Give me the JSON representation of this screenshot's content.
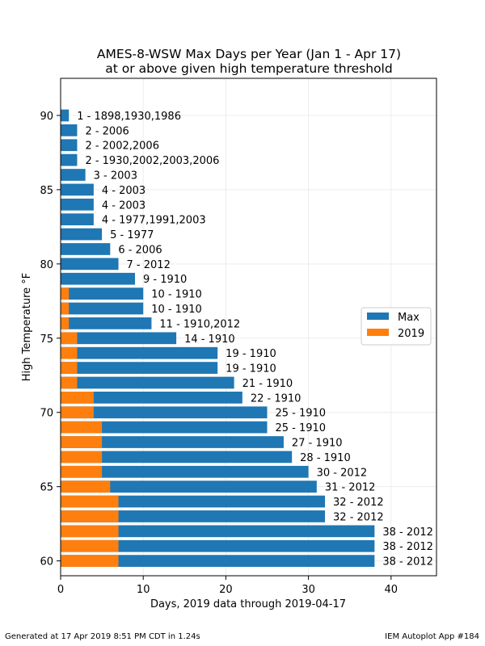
{
  "chart_data": {
    "type": "bar",
    "orientation": "horizontal",
    "title": "AMES-8-WSW Max Days per Year (Jan 1 - Apr 17)",
    "subtitle": "at or above given high temperature threshold",
    "xlabel": "Days, 2019 data through 2019-04-17",
    "ylabel": "High Temperature °F",
    "xlim": [
      0,
      45.5
    ],
    "ylim": [
      59,
      92.5
    ],
    "x_ticks": [
      0,
      10,
      20,
      30,
      40
    ],
    "y_ticks": [
      60,
      65,
      70,
      75,
      80,
      85,
      90
    ],
    "grid": true,
    "legend_position": "center-right",
    "thresholds": [
      90,
      89,
      88,
      87,
      86,
      85,
      84,
      83,
      82,
      81,
      80,
      79,
      78,
      77,
      76,
      75,
      74,
      73,
      72,
      71,
      70,
      69,
      68,
      67,
      66,
      65,
      64,
      63,
      62,
      61,
      60
    ],
    "series": [
      {
        "name": "Max",
        "color": "#1f77b4",
        "values": [
          1,
          2,
          2,
          2,
          3,
          4,
          4,
          4,
          5,
          6,
          7,
          9,
          10,
          10,
          11,
          14,
          19,
          19,
          21,
          22,
          25,
          25,
          27,
          28,
          30,
          31,
          32,
          32,
          38,
          38,
          38
        ]
      },
      {
        "name": "2019",
        "color": "#ff7f0e",
        "values": [
          0,
          0,
          0,
          0,
          0,
          0,
          0,
          0,
          0,
          0,
          0,
          0,
          1,
          1,
          1,
          2,
          2,
          2,
          2,
          4,
          4,
          5,
          5,
          5,
          5,
          6,
          7,
          7,
          7,
          7,
          7
        ]
      }
    ],
    "bar_labels": [
      "1 - 1898,1930,1986",
      "2 - 2006",
      "2 - 2002,2006",
      "2 - 1930,2002,2003,2006",
      "3 - 2003",
      "4 - 2003",
      "4 - 2003",
      "4 - 1977,1991,2003",
      "5 - 1977",
      "6 - 2006",
      "7 - 2012",
      "9 - 1910",
      "10 - 1910",
      "10 - 1910",
      "11 - 1910,2012",
      "14 - 1910",
      "19 - 1910",
      "19 - 1910",
      "21 - 1910",
      "22 - 1910",
      "25 - 1910",
      "25 - 1910",
      "27 - 1910",
      "28 - 1910",
      "30 - 2012",
      "31 - 2012",
      "32 - 2012",
      "32 - 2012",
      "38 - 2012",
      "38 - 2012",
      "38 - 2012"
    ]
  },
  "footer": {
    "left": "Generated at 17 Apr 2019 8:51 PM CDT in 1.24s",
    "right": "IEM Autoplot App #184"
  }
}
